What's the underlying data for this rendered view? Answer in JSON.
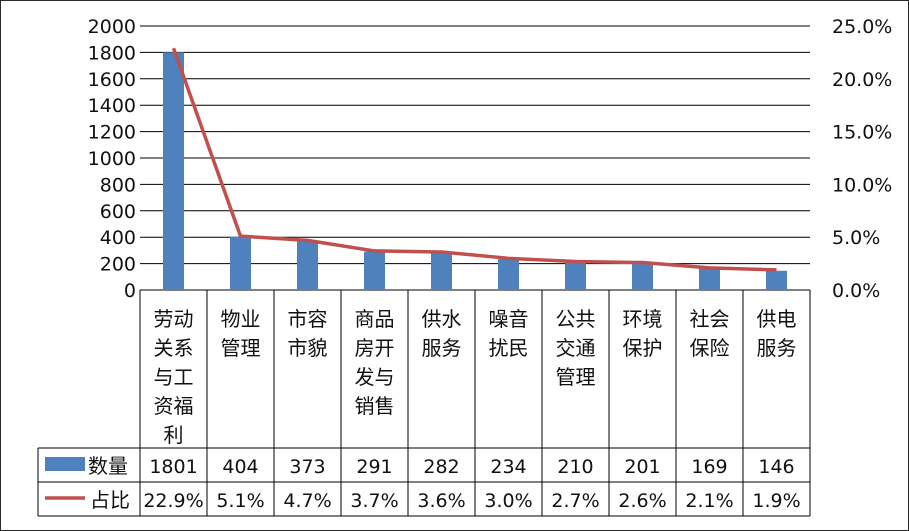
{
  "chart_data": {
    "type": "bar+line",
    "categories": [
      [
        "劳动",
        "关系",
        "与工",
        "资福",
        "利"
      ],
      [
        "物业",
        "管理"
      ],
      [
        "市容",
        "市貌"
      ],
      [
        "商品",
        "房开",
        "发与",
        "销售"
      ],
      [
        "供水",
        "服务"
      ],
      [
        "噪音",
        "扰民"
      ],
      [
        "公共",
        "交通",
        "管理"
      ],
      [
        "环境",
        "保护"
      ],
      [
        "社会",
        "保险"
      ],
      [
        "供电",
        "服务"
      ]
    ],
    "series": [
      {
        "name": "数量",
        "type": "bar",
        "axis": "left",
        "values": [
          1801,
          404,
          373,
          291,
          282,
          234,
          210,
          201,
          169,
          146
        ],
        "labels": [
          "1801",
          "404",
          "373",
          "291",
          "282",
          "234",
          "210",
          "201",
          "169",
          "146"
        ]
      },
      {
        "name": "占比",
        "type": "line",
        "axis": "right",
        "values": [
          22.9,
          5.1,
          4.7,
          3.7,
          3.6,
          3.0,
          2.7,
          2.6,
          2.1,
          1.9
        ],
        "labels": [
          "22.9%",
          "5.1%",
          "4.7%",
          "3.7%",
          "3.6%",
          "3.0%",
          "2.7%",
          "2.6%",
          "2.1%",
          "1.9%"
        ]
      }
    ],
    "y_left": {
      "lim": [
        0,
        2000
      ],
      "ticks": [
        "0",
        "200",
        "400",
        "600",
        "800",
        "1000",
        "1200",
        "1400",
        "1600",
        "1800",
        "2000"
      ]
    },
    "y_right": {
      "lim": [
        0,
        25
      ],
      "ticks": [
        "0.0%",
        "5.0%",
        "10.0%",
        "15.0%",
        "20.0%",
        "25.0%"
      ]
    },
    "grid": "horizontal",
    "legend": "data-table",
    "colors": {
      "bar": "#4f81bd",
      "line": "#c0504d",
      "grid": "#000000"
    }
  }
}
